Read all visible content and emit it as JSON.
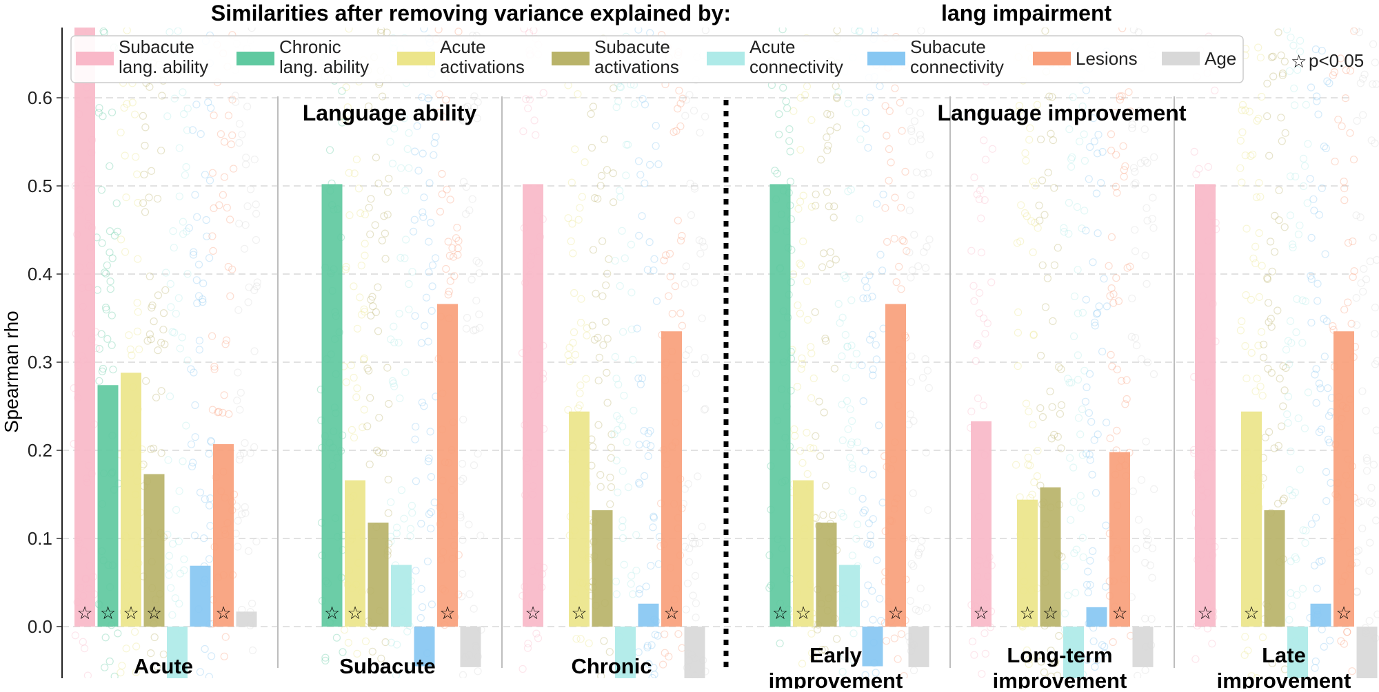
{
  "chart_data": {
    "type": "bar",
    "title": "Similarities after removing variance explained by:",
    "title_suffix": "lang impairment",
    "ylabel": "Spearman rho",
    "ylim": [
      -0.06,
      0.68
    ],
    "yticks": [
      "0.0",
      "0.1",
      "0.2",
      "0.3",
      "0.4",
      "0.5",
      "0.6"
    ],
    "grid": "dashed horizontal",
    "legend_position": "top",
    "significance_note": "p<0.05",
    "section_titles": [
      "Language ability",
      "Language improvement"
    ],
    "series": [
      {
        "name": "Subacute lang. ability",
        "color": "#f9b8c8",
        "values": [
          0.68,
          null,
          0.502,
          null,
          0.233,
          0.502
        ]
      },
      {
        "name": "Chronic lang. ability",
        "color": "#5fc9a0",
        "values": [
          0.274,
          0.502,
          null,
          0.502,
          null,
          null
        ]
      },
      {
        "name": "Acute activations",
        "color": "#ece58a",
        "values": [
          0.288,
          0.166,
          0.244,
          0.166,
          0.144,
          0.244
        ]
      },
      {
        "name": "Subacute activations",
        "color": "#b9b369",
        "values": [
          0.173,
          0.118,
          0.132,
          0.118,
          0.158,
          0.132
        ]
      },
      {
        "name": "Acute connectivity",
        "color": "#aeeae8",
        "values": [
          -0.06,
          0.07,
          -0.06,
          0.07,
          -0.06,
          -0.06
        ]
      },
      {
        "name": "Subacute connectivity",
        "color": "#87c7f2",
        "values": [
          0.069,
          -0.045,
          0.026,
          -0.045,
          0.022,
          0.026
        ]
      },
      {
        "name": "Lesions",
        "color": "#f89f7b",
        "values": [
          0.207,
          0.366,
          0.335,
          0.366,
          0.198,
          0.335
        ]
      },
      {
        "name": "Age",
        "color": "#d8d8d8",
        "values": [
          0.017,
          -0.046,
          -0.06,
          -0.046,
          -0.046,
          -0.06
        ]
      }
    ],
    "groups": [
      {
        "label": [
          "Acute"
        ],
        "significant": [
          0,
          1,
          2,
          3,
          6
        ]
      },
      {
        "label": [
          "Subacute"
        ],
        "significant": [
          1,
          2,
          6
        ]
      },
      {
        "label": [
          "Chronic"
        ],
        "significant": [
          0,
          2,
          6
        ]
      },
      {
        "label": [
          "Early",
          "improvement"
        ],
        "significant": [
          1,
          2,
          6
        ]
      },
      {
        "label": [
          "Long-term",
          "improvement"
        ],
        "significant": [
          0,
          2,
          3,
          6
        ]
      },
      {
        "label": [
          "Late",
          "improvement"
        ],
        "significant": [
          0,
          2,
          6
        ]
      }
    ]
  }
}
